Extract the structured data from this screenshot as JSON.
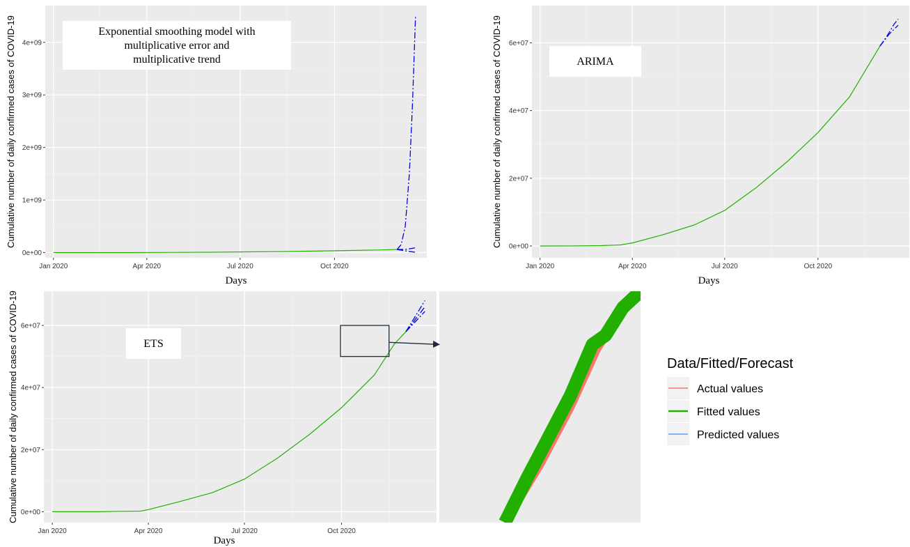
{
  "figure": {
    "ylabel": "Cumulative number of daily confirmed cases of COVID-19",
    "xlabel": "Days"
  },
  "legend": {
    "title": "Data/Fitted/Forecast",
    "items": [
      {
        "label": "Actual values",
        "color": "#f8766d"
      },
      {
        "label": "Fitted values",
        "color": "#22b000"
      },
      {
        "label": "Predicted values",
        "color": "#619cff"
      }
    ]
  },
  "chart_data": [
    {
      "id": "ets-multiplicative",
      "type": "line",
      "title": "",
      "annotation": [
        "Exponential smoothing model with",
        "multiplicative error and",
        "multiplicative trend"
      ],
      "xlabel": "Days",
      "ylabel": "Cumulative number of daily confirmed cases of COVID-19",
      "x_tick_labels": [
        "Jan 2020",
        "Apr 2020",
        "Jul 2020",
        "Oct 2020"
      ],
      "x_ticks": [
        "2020-01-01",
        "2020-04-01",
        "2020-07-01",
        "2020-10-01"
      ],
      "y_tick_labels": [
        "0e+00",
        "1e+09",
        "2e+09",
        "3e+09",
        "4e+09"
      ],
      "y_ticks": [
        0,
        1000000000,
        2000000000,
        3000000000,
        4000000000
      ],
      "xlim": [
        "2019-12-24",
        "2020-12-30"
      ],
      "ylim": [
        -100000000,
        4700000000
      ],
      "grid": true,
      "series": [
        {
          "name": "Fitted values",
          "color": "#22b000",
          "points": [
            [
              "2020-01-01",
              0
            ],
            [
              "2020-03-15",
              200000
            ],
            [
              "2020-04-15",
              2000000
            ],
            [
              "2020-06-01",
              6000000
            ],
            [
              "2020-08-01",
              17000000
            ],
            [
              "2020-10-01",
              34000000
            ],
            [
              "2020-11-15",
              50000000
            ],
            [
              "2020-12-01",
              58000000
            ]
          ]
        },
        {
          "name": "Predicted values",
          "color": "#0000e0",
          "dash": "9,3,2,3",
          "points": [
            [
              "2020-12-01",
              58000000
            ],
            [
              "2020-12-05",
              150000000
            ],
            [
              "2020-12-09",
              500000000
            ],
            [
              "2020-12-13",
              1500000000
            ],
            [
              "2020-12-16",
              2800000000
            ],
            [
              "2020-12-19",
              4500000000
            ]
          ]
        },
        {
          "name": "Predicted values",
          "color": "#0000e0",
          "dash": "9,3,2,3",
          "points": [
            [
              "2020-12-01",
              58000000
            ],
            [
              "2020-12-10",
              62000000
            ],
            [
              "2020-12-19",
              90000000
            ]
          ]
        },
        {
          "name": "Predicted values",
          "color": "#0000e0",
          "dash": "9,3,2,3",
          "points": [
            [
              "2020-12-01",
              58000000
            ],
            [
              "2020-12-10",
              30000000
            ],
            [
              "2020-12-19",
              5000000
            ]
          ]
        }
      ]
    },
    {
      "id": "arima",
      "type": "line",
      "title": "",
      "annotation": [
        "ARIMA"
      ],
      "xlabel": "Days",
      "ylabel": "Cumulative number of daily confirmed cases of COVID-19",
      "x_tick_labels": [
        "Jan 2020",
        "Apr 2020",
        "Jul 2020",
        "Oct 2020"
      ],
      "x_ticks": [
        "2020-01-01",
        "2020-04-01",
        "2020-07-01",
        "2020-10-01"
      ],
      "y_tick_labels": [
        "0e+00",
        "2e+07",
        "4e+07",
        "6e+07"
      ],
      "y_ticks": [
        0,
        20000000,
        40000000,
        60000000
      ],
      "xlim": [
        "2019-12-24",
        "2020-12-30"
      ],
      "ylim": [
        -3500000,
        71000000
      ],
      "grid": true,
      "series": [
        {
          "name": "Fitted values",
          "color": "#22b000",
          "points": [
            [
              "2020-01-01",
              0
            ],
            [
              "2020-02-01",
              10000
            ],
            [
              "2020-03-01",
              100000
            ],
            [
              "2020-03-20",
              300000
            ],
            [
              "2020-04-01",
              900000
            ],
            [
              "2020-05-01",
              3300000
            ],
            [
              "2020-06-01",
              6200000
            ],
            [
              "2020-07-01",
              10500000
            ],
            [
              "2020-08-01",
              17200000
            ],
            [
              "2020-09-01",
              25000000
            ],
            [
              "2020-10-01",
              33500000
            ],
            [
              "2020-11-01",
              44000000
            ],
            [
              "2020-12-01",
              59000000
            ]
          ]
        },
        {
          "name": "Predicted values",
          "color": "#0000e0",
          "dash": "9,3,2,3",
          "points": [
            [
              "2020-12-01",
              59000000
            ],
            [
              "2020-12-08",
              62000000
            ],
            [
              "2020-12-15",
              65500000
            ],
            [
              "2020-12-19",
              67000000
            ]
          ]
        },
        {
          "name": "Predicted values",
          "color": "#0000e0",
          "dash": "9,3,2,3",
          "points": [
            [
              "2020-12-01",
              59000000
            ],
            [
              "2020-12-10",
              62500000
            ],
            [
              "2020-12-19",
              65200000
            ]
          ]
        }
      ]
    },
    {
      "id": "ets",
      "type": "line",
      "title": "",
      "annotation": [
        "ETS"
      ],
      "xlabel": "Days",
      "ylabel": "Cumulative number of daily confirmed cases of COVID-19",
      "x_tick_labels": [
        "Jan 2020",
        "Apr 2020",
        "Jul 2020",
        "Oct 2020"
      ],
      "x_ticks": [
        "2020-01-01",
        "2020-04-01",
        "2020-07-01",
        "2020-10-01"
      ],
      "y_tick_labels": [
        "0e+00",
        "2e+07",
        "4e+07",
        "6e+07"
      ],
      "y_ticks": [
        0,
        20000000,
        40000000,
        60000000
      ],
      "xlim": [
        "2019-12-24",
        "2020-12-30"
      ],
      "ylim": [
        -3500000,
        71000000
      ],
      "grid": true,
      "zoom_box": {
        "x": [
          "2020-09-30",
          "2020-11-15"
        ],
        "y": [
          50000000,
          60000000
        ]
      },
      "series": [
        {
          "name": "Fitted values",
          "color": "#22b000",
          "points": [
            [
              "2020-01-01",
              0
            ],
            [
              "2020-02-15",
              0
            ],
            [
              "2020-03-01",
              100000
            ],
            [
              "2020-03-25",
              200000
            ],
            [
              "2020-04-01",
              700000
            ],
            [
              "2020-05-01",
              3300000
            ],
            [
              "2020-06-01",
              6200000
            ],
            [
              "2020-07-01",
              10500000
            ],
            [
              "2020-08-01",
              17200000
            ],
            [
              "2020-09-01",
              25000000
            ],
            [
              "2020-10-01",
              33500000
            ],
            [
              "2020-11-01",
              44000000
            ],
            [
              "2020-11-20",
              54000000
            ],
            [
              "2020-12-01",
              58000000
            ]
          ]
        },
        {
          "name": "Predicted values",
          "color": "#0000e0",
          "dash": "9,3,2,3",
          "points": [
            [
              "2020-12-01",
              58000000
            ],
            [
              "2020-12-19",
              68000000
            ]
          ]
        },
        {
          "name": "Predicted values",
          "color": "#0000e0",
          "dash": "9,3,2,3",
          "points": [
            [
              "2020-12-01",
              58000000
            ],
            [
              "2020-12-19",
              66000000
            ]
          ]
        },
        {
          "name": "Predicted values",
          "color": "#0000e0",
          "dash": "9,3,2,3",
          "points": [
            [
              "2020-12-01",
              58000000
            ],
            [
              "2020-12-19",
              64500000
            ]
          ]
        }
      ]
    },
    {
      "id": "zoom-inset",
      "type": "line",
      "title": "",
      "xlim": [
        "2020-09-30",
        "2020-11-15"
      ],
      "ylim": [
        50000000,
        60000000
      ],
      "grid": false,
      "series": [
        {
          "name": "Actual values",
          "color": "#f8766d",
          "points": [
            [
              "2020-10-15",
              50000000
            ],
            [
              "2020-10-23",
              52500000
            ],
            [
              "2020-10-30",
              55000000
            ],
            [
              "2020-11-05",
              57500000
            ],
            [
              "2020-11-10",
              59000000
            ],
            [
              "2020-11-15",
              60000000
            ]
          ]
        },
        {
          "name": "Fitted values",
          "color": "#22b000",
          "points": [
            [
              "2020-10-15",
              50000000
            ],
            [
              "2020-10-20",
              51900000
            ],
            [
              "2020-10-25",
              53700000
            ],
            [
              "2020-10-30",
              55500000
            ],
            [
              "2020-11-04",
              57700000
            ],
            [
              "2020-11-07",
              58100000
            ],
            [
              "2020-11-11",
              59300000
            ],
            [
              "2020-11-15",
              60000000
            ]
          ]
        }
      ]
    }
  ]
}
